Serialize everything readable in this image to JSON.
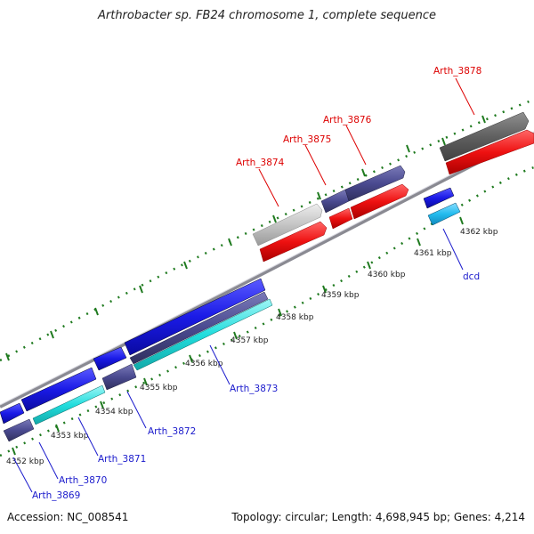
{
  "title": "Arthrobacter sp. FB24 chromosome 1, complete sequence",
  "accession": "Accession: NC_008541",
  "summary": "Topology: circular; Length: 4,698,945 bp; Genes: 4,214",
  "ticks": [
    {
      "label": "4352 kbp"
    },
    {
      "label": "4353 kbp"
    },
    {
      "label": "4354 kbp"
    },
    {
      "label": "4355 kbp"
    },
    {
      "label": "4356 kbp"
    },
    {
      "label": "4357 kbp"
    },
    {
      "label": "4358 kbp"
    },
    {
      "label": "4359 kbp"
    },
    {
      "label": "4360 kbp"
    },
    {
      "label": "4361 kbp"
    },
    {
      "label": "4362 kbp"
    }
  ],
  "genes": [
    {
      "name": "Arth_3869",
      "strand": "reverse"
    },
    {
      "name": "Arth_3870",
      "strand": "reverse"
    },
    {
      "name": "Arth_3871",
      "strand": "reverse"
    },
    {
      "name": "Arth_3872",
      "strand": "reverse"
    },
    {
      "name": "Arth_3873",
      "strand": "reverse"
    },
    {
      "name": "Arth_3874",
      "strand": "forward"
    },
    {
      "name": "Arth_3875",
      "strand": "forward"
    },
    {
      "name": "Arth_3876",
      "strand": "forward"
    },
    {
      "name": "Arth_3878",
      "strand": "forward"
    },
    {
      "name": "dcd",
      "strand": "reverse"
    }
  ],
  "colors": {
    "forward_label": "#dd0000",
    "reverse_label": "#1a1acc",
    "tick": "#1f7a1f",
    "backbone": "#8a8a92",
    "cds_blue": "#1a1ae6",
    "cds_slate": "#4a4a90",
    "cds_cyan": "#22dddd",
    "cds_red": "#ee1111",
    "cds_gray": "#c4c4c4",
    "cds_dark": "#606060",
    "cds_lightblue": "#22bbee"
  }
}
